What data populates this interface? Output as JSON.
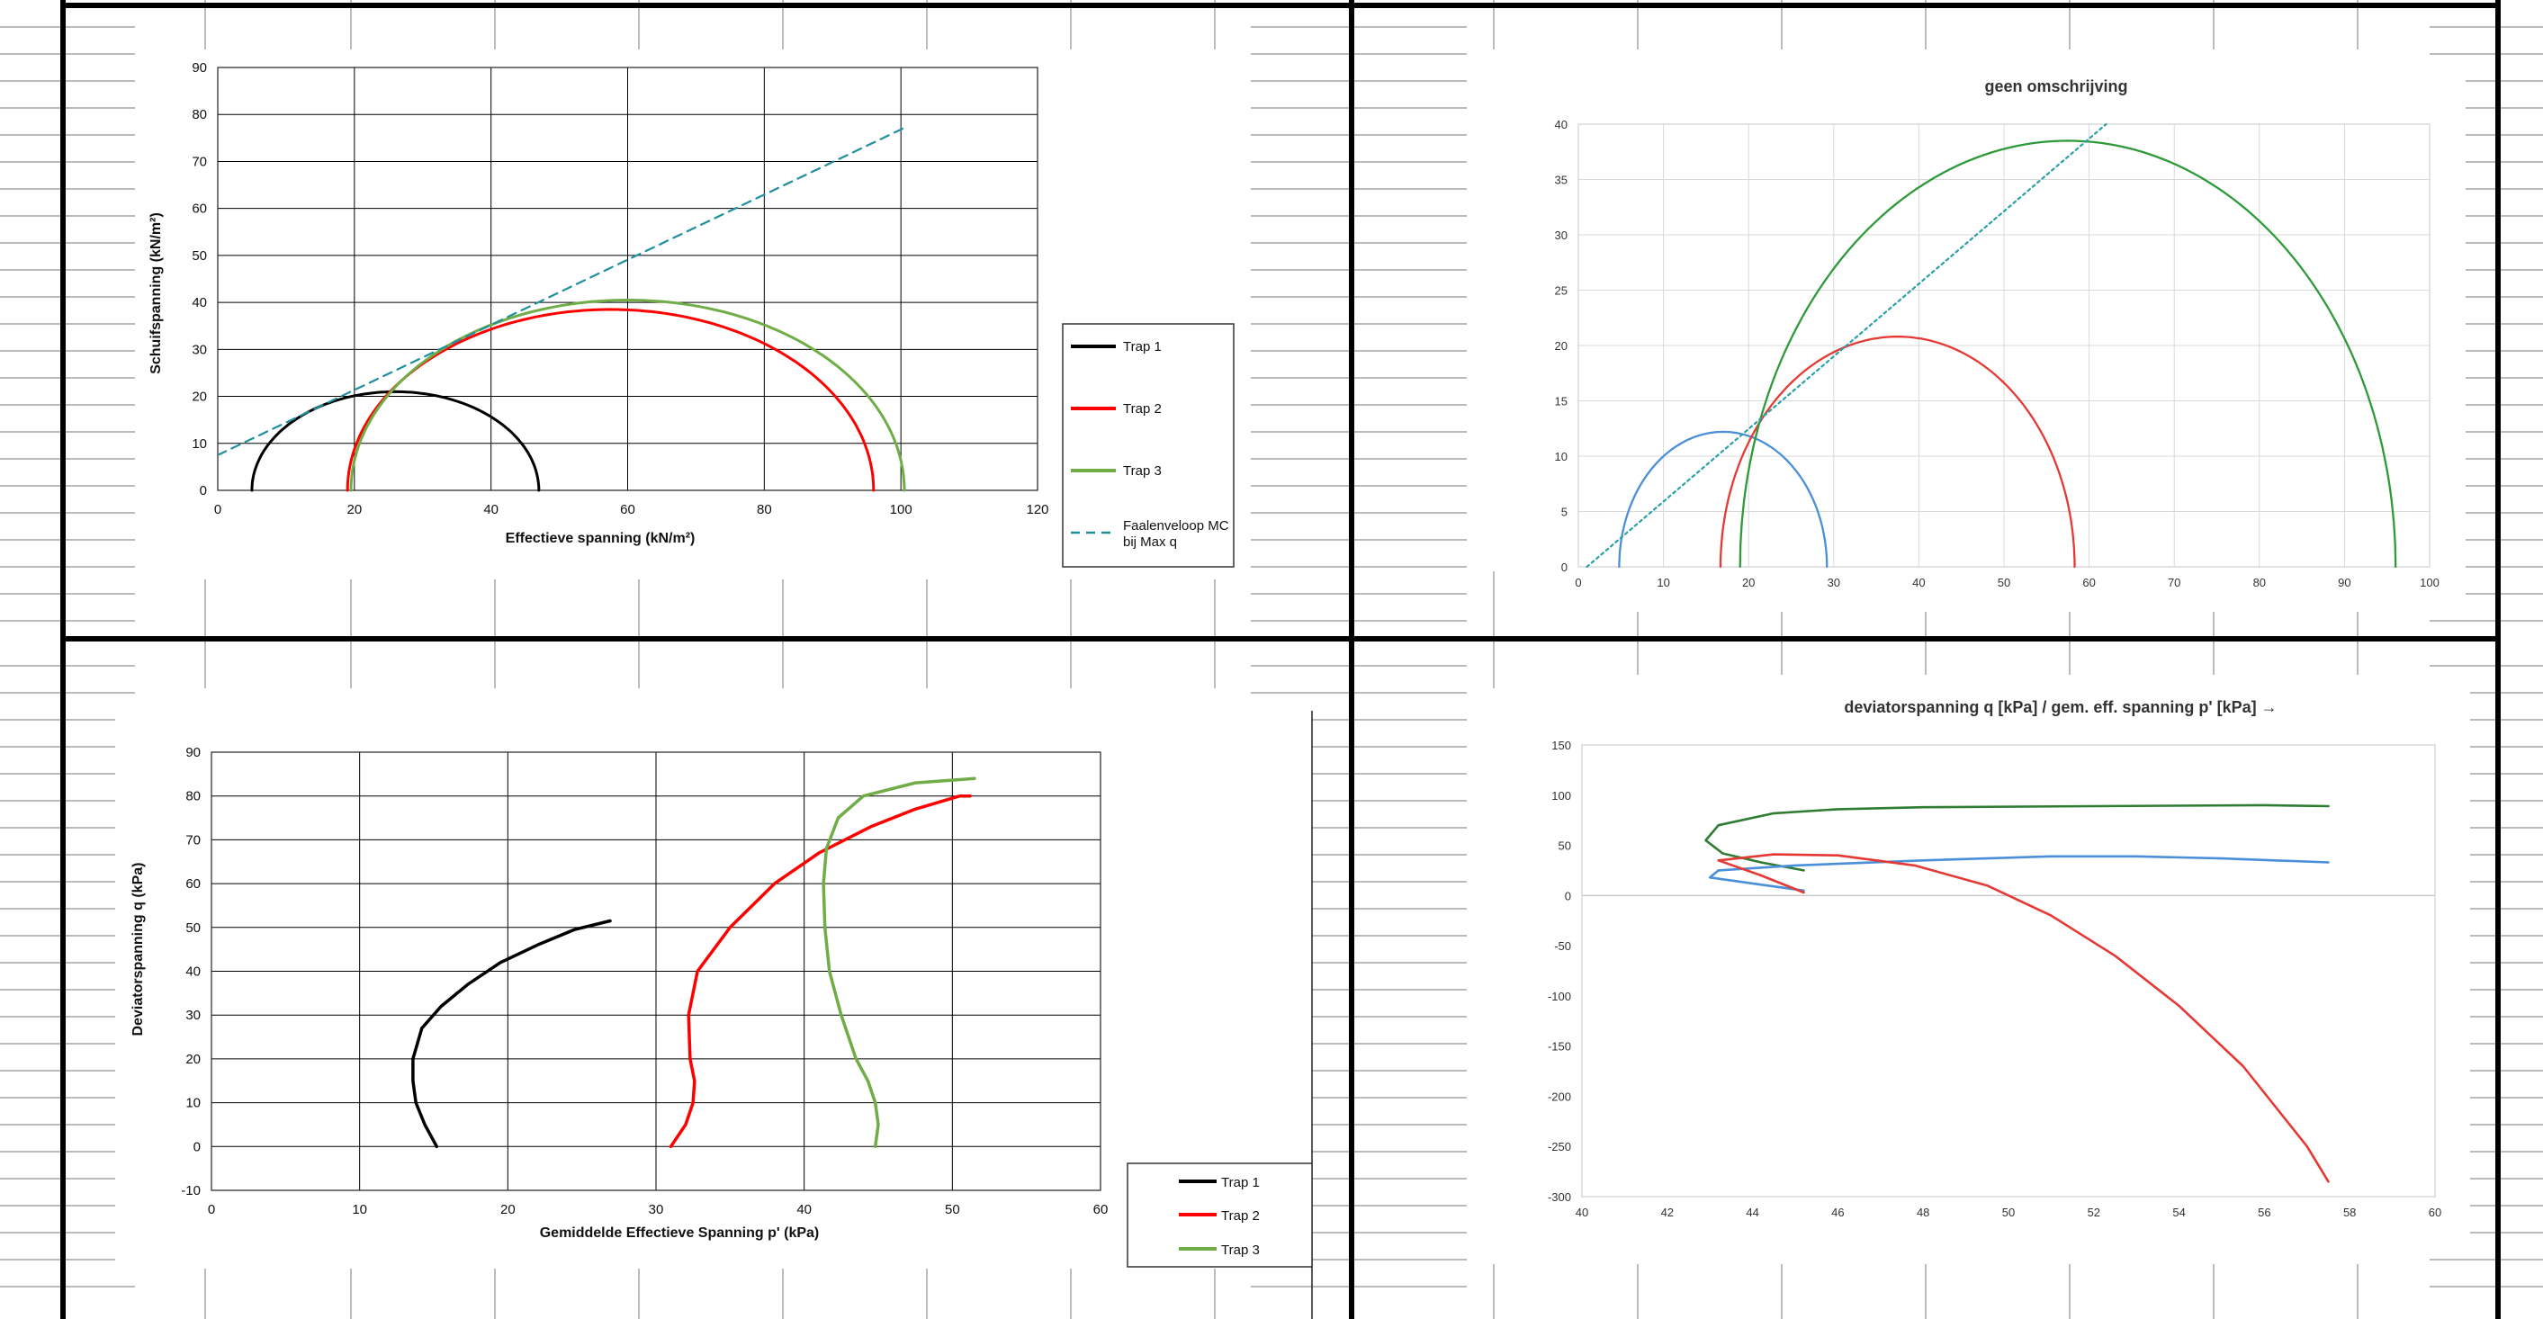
{
  "chart_data": [
    {
      "id": "mohr-circles-kn",
      "type": "line",
      "title": "",
      "xlabel": "Effectieve spanning (kN/m²)",
      "ylabel": "Schuifspanning (kN/m²)",
      "xlim": [
        0,
        120
      ],
      "ylim": [
        0,
        90
      ],
      "xticks": [
        0,
        20,
        40,
        60,
        80,
        100,
        120
      ],
      "yticks": [
        0,
        10,
        20,
        30,
        40,
        50,
        60,
        70,
        80,
        90
      ],
      "grid": true,
      "legend_position": "right",
      "series": [
        {
          "name": "Trap 1",
          "kind": "circle",
          "center": 26,
          "radius": 21,
          "color": "#000000",
          "dash": ""
        },
        {
          "name": "Trap 2",
          "kind": "circle",
          "center": 57.5,
          "radius": 38.5,
          "color": "#ff0000",
          "dash": ""
        },
        {
          "name": "Trap 3",
          "kind": "circle",
          "center": 60,
          "radius": 40.5,
          "color": "#70ad47",
          "dash": ""
        },
        {
          "name": "Faalenveloop MC bij Max q",
          "kind": "line",
          "x": [
            0,
            101
          ],
          "y": [
            7.5,
            77.5
          ],
          "color": "#1f8f9f",
          "dash": "10,7"
        }
      ]
    },
    {
      "id": "mohr-circles-unlabeled",
      "type": "line",
      "title": "geen omschrijving",
      "xlabel": "",
      "ylabel": "",
      "xlim": [
        0,
        100
      ],
      "ylim": [
        0,
        40
      ],
      "xticks": [
        0,
        10,
        20,
        30,
        40,
        50,
        60,
        70,
        80,
        90,
        100
      ],
      "yticks": [
        0,
        5,
        10,
        15,
        20,
        25,
        30,
        35,
        40
      ],
      "grid": true,
      "series": [
        {
          "kind": "circle",
          "center": 17,
          "radius": 12.2,
          "color": "#4a8fd8",
          "dash": ""
        },
        {
          "kind": "circle",
          "center": 37.5,
          "radius": 20.8,
          "color": "#e53935",
          "dash": ""
        },
        {
          "kind": "circle",
          "center": 57.5,
          "radius": 38.5,
          "color": "#2e9a3a",
          "dash": ""
        },
        {
          "kind": "line",
          "x": [
            1,
            62
          ],
          "y": [
            0,
            40
          ],
          "color": "#2aa0a8",
          "dash": "3,4"
        }
      ]
    },
    {
      "id": "stress-path-q-p",
      "type": "line",
      "title": "",
      "xlabel": "Gemiddelde Effectieve Spanning p' (kPa)",
      "ylabel": "Deviatorspanning q (kPa)",
      "xlim": [
        0,
        60
      ],
      "ylim": [
        -10,
        90
      ],
      "xticks": [
        0,
        10,
        20,
        30,
        40,
        50,
        60
      ],
      "yticks": [
        -10,
        0,
        10,
        20,
        30,
        40,
        50,
        60,
        70,
        80,
        90
      ],
      "grid": true,
      "legend_position": "bottom-right",
      "series": [
        {
          "name": "Trap 1",
          "color": "#000000",
          "x": [
            15.2,
            14.4,
            13.8,
            13.6,
            13.6,
            14.2,
            15.5,
            17.3,
            19.5,
            22.0,
            24.5,
            26.9
          ],
          "y": [
            0,
            5,
            10,
            15,
            20,
            27,
            32,
            37,
            42,
            46,
            49.5,
            51.5
          ]
        },
        {
          "name": "Trap 2",
          "color": "#ff0000",
          "x": [
            31.0,
            32.0,
            32.5,
            32.6,
            32.3,
            32.2,
            32.8,
            35.0,
            38.0,
            41.0,
            44.5,
            47.5,
            50.5,
            51.2
          ],
          "y": [
            0,
            5,
            10,
            15,
            20,
            30,
            40,
            50,
            60,
            67,
            73,
            77,
            80,
            80
          ]
        },
        {
          "name": "Trap 3",
          "color": "#70ad47",
          "x": [
            44.8,
            45.0,
            44.8,
            44.3,
            43.5,
            42.5,
            41.7,
            41.4,
            41.3,
            41.5,
            42.3,
            44.0,
            47.5,
            51.5
          ],
          "y": [
            0,
            5,
            10,
            15,
            20,
            30,
            40,
            50,
            60,
            68,
            75,
            80,
            83,
            84
          ]
        }
      ]
    },
    {
      "id": "stress-path-signed",
      "type": "line",
      "title": "deviatorspanning q [kPa] / gem. eff. spanning p' [kPa] →",
      "xlabel": "",
      "ylabel": "",
      "xlim": [
        40,
        60
      ],
      "ylim": [
        -300,
        150
      ],
      "xticks": [
        40,
        42,
        44,
        46,
        48,
        50,
        52,
        54,
        56,
        58,
        60
      ],
      "yticks": [
        -300,
        -250,
        -200,
        -150,
        -100,
        -50,
        0,
        50,
        100,
        150
      ],
      "grid": "zero-line",
      "series": [
        {
          "color": "#2e7d32",
          "x": [
            45.2,
            44.2,
            43.3,
            42.9,
            43.2,
            44.5,
            46.0,
            48.0,
            52.0,
            56.0,
            57.5
          ],
          "y": [
            25,
            33,
            42,
            55,
            70,
            82,
            86,
            88,
            89,
            90,
            89
          ]
        },
        {
          "color": "#4a8fd8",
          "x": [
            45.2,
            44.0,
            43.0,
            43.2,
            45.0,
            48.0,
            51.0,
            53.0,
            55.0,
            57.5
          ],
          "y": [
            5,
            12,
            18,
            25,
            30,
            35,
            39,
            39,
            37,
            33
          ]
        },
        {
          "color": "#e53935",
          "x": [
            45.2,
            44.2,
            43.2,
            44.5,
            46.0,
            47.8,
            49.5,
            51.0,
            52.5,
            54.0,
            55.5,
            57.0,
            57.5
          ],
          "y": [
            3,
            20,
            35,
            41,
            40,
            30,
            10,
            -20,
            -60,
            -110,
            -170,
            -250,
            -285
          ]
        }
      ]
    }
  ]
}
